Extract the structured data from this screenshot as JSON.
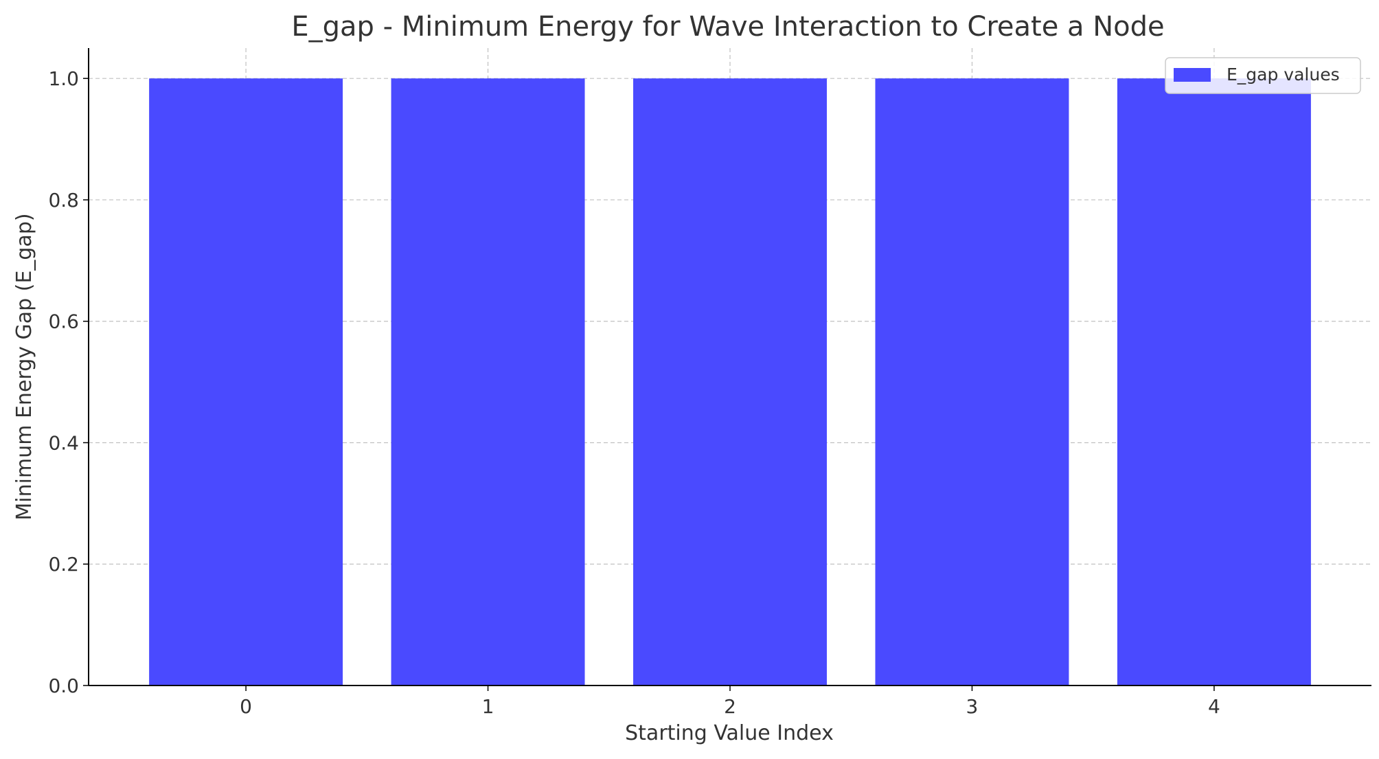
{
  "chart_data": {
    "type": "bar",
    "title": "E_gap - Minimum Energy for Wave Interaction to Create a Node",
    "xlabel": "Starting Value Index",
    "ylabel": "Minimum Energy Gap (E_gap)",
    "categories": [
      "0",
      "1",
      "2",
      "3",
      "4"
    ],
    "series": [
      {
        "name": "E_gap values",
        "values": [
          1.0,
          1.0,
          1.0,
          1.0,
          1.0
        ],
        "color": "#4a4aff"
      }
    ],
    "ylim": [
      0,
      1.05
    ],
    "yticks": [
      0.0,
      0.2,
      0.4,
      0.6,
      0.8,
      1.0
    ],
    "ytick_labels": [
      "0.0",
      "0.2",
      "0.4",
      "0.6",
      "0.8",
      "1.0"
    ],
    "grid": true,
    "legend_position": "top-right"
  }
}
